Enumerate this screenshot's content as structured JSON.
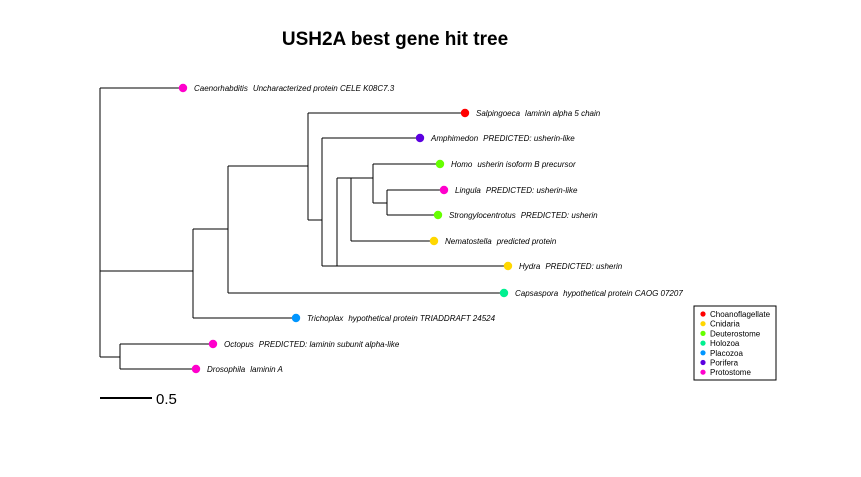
{
  "title": "USH2A best gene hit tree",
  "tips": [
    {
      "id": "caenorhabditis",
      "genus": "Caenorhabditis",
      "description": "Uncharacterized protein CELE K08C7.3",
      "group": "Protostome"
    },
    {
      "id": "salpingoeca",
      "genus": "Salpingoeca",
      "description": "laminin alpha 5 chain",
      "group": "Choanoflagellate"
    },
    {
      "id": "amphimedon",
      "genus": "Amphimedon",
      "description": "PREDICTED: usherin-like",
      "group": "Porifera"
    },
    {
      "id": "homo",
      "genus": "Homo",
      "description": "usherin isoform B precursor",
      "group": "Deuterostome"
    },
    {
      "id": "lingula",
      "genus": "Lingula",
      "description": "PREDICTED: usherin-like",
      "group": "Protostome"
    },
    {
      "id": "strongylocentrotus",
      "genus": "Strongylocentrotus",
      "description": "PREDICTED: usherin",
      "group": "Deuterostome"
    },
    {
      "id": "nematostella",
      "genus": "Nematostella",
      "description": "predicted protein",
      "group": "Cnidaria"
    },
    {
      "id": "hydra",
      "genus": "Hydra",
      "description": "PREDICTED: usherin",
      "group": "Cnidaria"
    },
    {
      "id": "capsaspora",
      "genus": "Capsaspora",
      "description": "hypothetical protein CAOG 07207",
      "group": "Holozoa"
    },
    {
      "id": "trichoplax",
      "genus": "Trichoplax",
      "description": "hypothetical protein TRIADDRAFT 24524",
      "group": "Placozoa"
    },
    {
      "id": "octopus",
      "genus": "Octopus",
      "description": "PREDICTED: laminin subunit alpha-like",
      "group": "Protostome"
    },
    {
      "id": "drosophila",
      "genus": "Drosophila",
      "description": "laminin A",
      "group": "Protostome"
    }
  ],
  "legend": [
    {
      "label": "Choanoflagellate",
      "color": "#FF0000"
    },
    {
      "label": "Cnidaria",
      "color": "#FFD700"
    },
    {
      "label": "Deuterostome",
      "color": "#66FF00"
    },
    {
      "label": "Holozoa",
      "color": "#00F090"
    },
    {
      "label": "Placozoa",
      "color": "#0096FF"
    },
    {
      "label": "Porifera",
      "color": "#5C00E0"
    },
    {
      "label": "Protostome",
      "color": "#FF00CC"
    }
  ],
  "scale_bar": {
    "label": "0.5"
  }
}
